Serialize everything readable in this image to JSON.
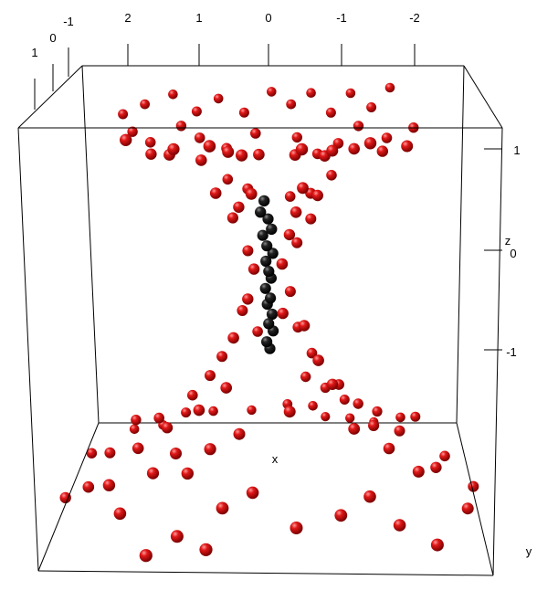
{
  "chart_data": {
    "type": "scatter",
    "plot_kind": "3d-scatter",
    "title": "",
    "axes": {
      "x": {
        "label": "x",
        "ticks": [
          "2",
          "1",
          "0",
          "-1",
          "-2"
        ]
      },
      "y": {
        "label": "y",
        "ticks": [
          "1",
          "0",
          "-1"
        ]
      },
      "z": {
        "label": "z",
        "ticks": [
          "1",
          "0",
          "-1"
        ]
      }
    },
    "colors": {
      "red": "#cc1111",
      "black": "#111111",
      "box": "#000000"
    },
    "series": [
      {
        "color_key": "red",
        "points": [
          [
            -1.8,
            -1.6,
            1.15
          ],
          [
            -1.5,
            -1.2,
            1.05
          ],
          [
            -1.2,
            -1.5,
            1.12
          ],
          [
            -0.9,
            -1.3,
            1.0
          ],
          [
            -0.6,
            -1.7,
            1.1
          ],
          [
            -0.3,
            -1.4,
            1.05
          ],
          [
            0.0,
            -1.6,
            1.12
          ],
          [
            0.4,
            -1.3,
            1.0
          ],
          [
            0.8,
            -1.5,
            1.08
          ],
          [
            1.1,
            -1.2,
            1.02
          ],
          [
            1.5,
            -1.6,
            1.1
          ],
          [
            1.9,
            -1.4,
            1.05
          ],
          [
            2.2,
            -1.2,
            1.0
          ],
          [
            -2.1,
            -0.8,
            0.95
          ],
          [
            -1.7,
            -0.6,
            0.9
          ],
          [
            -1.3,
            -0.9,
            0.95
          ],
          [
            -1.0,
            -0.7,
            0.85
          ],
          [
            -0.7,
            -0.5,
            0.8
          ],
          [
            -0.4,
            -0.8,
            0.88
          ],
          [
            0.2,
            -0.7,
            0.92
          ],
          [
            0.6,
            -0.4,
            0.85
          ],
          [
            1.0,
            -0.6,
            0.9
          ],
          [
            1.3,
            -0.9,
            0.95
          ],
          [
            1.7,
            -0.5,
            0.88
          ],
          [
            2.0,
            -0.8,
            0.92
          ],
          [
            -1.6,
            0.2,
            0.9
          ],
          [
            -1.2,
            0.5,
            0.95
          ],
          [
            -0.8,
            0.3,
            0.88
          ],
          [
            -0.4,
            0.6,
            0.92
          ],
          [
            0.1,
            0.4,
            0.9
          ],
          [
            0.5,
            0.7,
            0.95
          ],
          [
            0.9,
            0.3,
            0.85
          ],
          [
            1.3,
            0.6,
            0.92
          ],
          [
            1.6,
            0.2,
            0.88
          ],
          [
            -1.9,
            0.8,
            1.0
          ],
          [
            -1.4,
            1.1,
            1.05
          ],
          [
            -0.9,
            0.9,
            0.98
          ],
          [
            -0.5,
            1.2,
            1.02
          ],
          [
            0.3,
            1.0,
            0.96
          ],
          [
            0.7,
            1.3,
            1.05
          ],
          [
            1.2,
            1.0,
            1.0
          ],
          [
            1.8,
            1.2,
            1.08
          ],
          [
            -0.9,
            -0.5,
            0.65
          ],
          [
            -0.6,
            -0.3,
            0.55
          ],
          [
            -0.3,
            -0.5,
            0.5
          ],
          [
            0.3,
            -0.3,
            0.58
          ],
          [
            0.6,
            -0.5,
            0.62
          ],
          [
            -0.7,
            0.2,
            0.6
          ],
          [
            -0.4,
            0.3,
            0.5
          ],
          [
            0.4,
            0.2,
            0.52
          ],
          [
            0.7,
            0.4,
            0.64
          ],
          [
            -0.5,
            0.6,
            0.7
          ],
          [
            0.2,
            0.6,
            0.66
          ],
          [
            -0.6,
            -0.1,
            0.4
          ],
          [
            -0.3,
            0.1,
            0.32
          ],
          [
            0.5,
            0.0,
            0.42
          ],
          [
            -0.4,
            -0.2,
            0.22
          ],
          [
            0.3,
            -0.1,
            0.18
          ],
          [
            -0.2,
            0.3,
            0.15
          ],
          [
            0.2,
            0.2,
            0.1
          ],
          [
            -0.3,
            -0.1,
            -0.1
          ],
          [
            0.3,
            0.1,
            -0.12
          ],
          [
            -0.2,
            0.2,
            -0.2
          ],
          [
            0.4,
            -0.2,
            -0.25
          ],
          [
            -0.5,
            0.1,
            -0.3
          ],
          [
            0.5,
            0.3,
            -0.35
          ],
          [
            -0.4,
            -0.4,
            -0.4
          ],
          [
            0.2,
            -0.5,
            -0.45
          ],
          [
            -0.7,
            0.3,
            -0.5
          ],
          [
            0.7,
            -0.1,
            -0.55
          ],
          [
            -0.6,
            -0.6,
            -0.62
          ],
          [
            0.6,
            0.5,
            -0.65
          ],
          [
            -0.9,
            0.1,
            -0.7
          ],
          [
            0.9,
            -0.3,
            -0.72
          ],
          [
            -0.3,
            0.8,
            -0.75
          ],
          [
            -1.0,
            -0.4,
            -0.8
          ],
          [
            1.0,
            0.4,
            -0.82
          ],
          [
            -0.5,
            -0.9,
            -0.85
          ],
          [
            0.4,
            0.9,
            -0.88
          ],
          [
            -1.2,
            0.6,
            -0.9
          ],
          [
            1.2,
            -0.6,
            -0.92
          ],
          [
            -0.8,
            -1.0,
            -0.95
          ],
          [
            0.8,
            1.0,
            -0.96
          ],
          [
            -1.5,
            0.0,
            -1.0
          ],
          [
            1.5,
            0.1,
            -1.0
          ],
          [
            -1.3,
            -0.8,
            -1.02
          ],
          [
            1.3,
            0.8,
            -1.03
          ],
          [
            -1.7,
            0.5,
            -1.05
          ],
          [
            1.7,
            -0.5,
            -1.06
          ],
          [
            -1.1,
            -1.2,
            -1.08
          ],
          [
            1.1,
            1.2,
            -1.08
          ],
          [
            -1.9,
            -0.3,
            -1.1
          ],
          [
            1.9,
            0.3,
            -1.1
          ],
          [
            -1.6,
            -1.0,
            -1.12
          ],
          [
            1.6,
            1.0,
            -1.12
          ],
          [
            -2.1,
            0.8,
            -1.14
          ],
          [
            2.1,
            -0.8,
            -1.14
          ],
          [
            -0.2,
            -1.4,
            -1.16
          ],
          [
            0.2,
            1.4,
            -1.16
          ],
          [
            -2.2,
            -1.1,
            -1.18
          ],
          [
            2.2,
            1.1,
            -1.18
          ],
          [
            -1.4,
            1.3,
            -1.2
          ],
          [
            1.4,
            -1.3,
            -1.2
          ],
          [
            -0.6,
            -1.6,
            -1.22
          ],
          [
            0.6,
            1.6,
            -1.22
          ],
          [
            -2.4,
            0.2,
            -1.24
          ],
          [
            2.4,
            -0.2,
            -1.24
          ],
          [
            -1.0,
            1.6,
            -1.26
          ],
          [
            1.0,
            -1.6,
            -1.26
          ],
          [
            -2.0,
            -1.5,
            -1.28
          ],
          [
            2.0,
            1.5,
            -1.28
          ],
          [
            -0.4,
            1.8,
            -1.3
          ],
          [
            0.4,
            -1.8,
            -1.3
          ],
          [
            -2.6,
            -0.5,
            -1.32
          ],
          [
            2.6,
            0.5,
            -1.32
          ],
          [
            -1.8,
            1.5,
            -1.34
          ],
          [
            1.8,
            -1.5,
            -1.34
          ],
          [
            -1.2,
            -1.8,
            -1.36
          ],
          [
            1.2,
            1.8,
            -1.36
          ],
          [
            -2.8,
            0.8,
            -1.38
          ],
          [
            2.8,
            -0.8,
            -1.38
          ],
          [
            -0.8,
            -2.0,
            -1.4
          ],
          [
            0.8,
            2.0,
            -1.4
          ],
          [
            -2.3,
            1.7,
            -1.42
          ],
          [
            2.3,
            -1.7,
            -1.42
          ],
          [
            -1.6,
            -2.0,
            -1.44
          ],
          [
            1.6,
            2.0,
            -1.44
          ],
          [
            -3.0,
            -0.2,
            -1.46
          ],
          [
            3.0,
            0.2,
            -1.46
          ]
        ]
      },
      {
        "color_key": "black",
        "points": [
          [
            0.05,
            0.1,
            0.55
          ],
          [
            0.1,
            0.15,
            0.48
          ],
          [
            0.0,
            0.05,
            0.42
          ],
          [
            -0.05,
            0.12,
            0.36
          ],
          [
            0.08,
            0.0,
            0.3
          ],
          [
            0.02,
            0.08,
            0.24
          ],
          [
            -0.06,
            0.02,
            0.18
          ],
          [
            0.04,
            -0.02,
            0.12
          ],
          [
            0.0,
            0.04,
            0.06
          ],
          [
            -0.03,
            -0.04,
            0.0
          ],
          [
            0.05,
            0.02,
            -0.06
          ],
          [
            -0.02,
            0.06,
            -0.12
          ],
          [
            0.03,
            -0.05,
            -0.18
          ],
          [
            -0.04,
            0.0,
            -0.24
          ],
          [
            0.01,
            0.03,
            -0.3
          ],
          [
            -0.05,
            -0.03,
            -0.36
          ],
          [
            0.04,
            0.05,
            -0.42
          ],
          [
            0.0,
            -0.02,
            -0.48
          ]
        ]
      }
    ]
  }
}
